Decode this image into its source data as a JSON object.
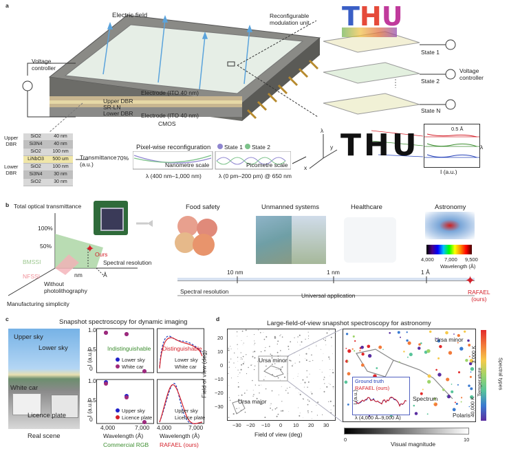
{
  "panel_a": {
    "label": "a",
    "electric_field": "Electric field",
    "voltage_controller": "Voltage\ncontroller",
    "reconfig_unit": "Reconfigurable\nmodulation unit",
    "electrode_top": "Electrode (ITO 40 nm)",
    "upper_dbr": "Upper DBR",
    "sr_ln": "SR-LN",
    "lower_dbr": "Lower DBR",
    "electrode_bottom": "Electrode (ITO 40 nm)",
    "cmos": "CMOS",
    "state1": "State 1",
    "state2": "State 2",
    "stateN": "State N",
    "voltage_controller_right": "Voltage\ncontroller",
    "thu_letters": [
      "T",
      "H",
      "U"
    ],
    "layer_stack": {
      "upper_label": "Upper\nDBR",
      "lower_label": "Lower\nDBR",
      "rows": [
        [
          "SiO2",
          "40 nm"
        ],
        [
          "Si3N4",
          "40 nm"
        ],
        [
          "SiO2",
          "100 nm"
        ],
        [
          "LiNbO3",
          "500 um"
        ],
        [
          "SiO2",
          "100 nm"
        ],
        [
          "Si3N4",
          "30 nm"
        ],
        [
          "SiO2",
          "30 nm"
        ]
      ]
    },
    "transmittance": "Transmittance\n(a.u.)",
    "pixel_reconfig": "Pixel-wise reconfiguration",
    "pct70": "70%",
    "nanometre_scale": "Nanometre scale",
    "picometre_scale": "Picometre scale",
    "legend_state1": "State 1",
    "legend_state2": "State 2",
    "x_nm": "λ (400 nm–1,000 nm)",
    "x_pm": "λ (0 pm–200 pm) @ 650 nm",
    "inset_scale": "0.5 Å",
    "inset_xlabel": "I (a.u.)",
    "inset_lambda": "λ",
    "axis_lambda": "λ",
    "axis_x": "x",
    "axis_y": "y"
  },
  "panel_b": {
    "label": "b",
    "y_axis": "Total optical transmittance",
    "tick100": "100%",
    "tick50": "50%",
    "bmssi": "BMSSI",
    "nfssi": "NFSSI",
    "ours": "Ours",
    "nm": "nm",
    "angstrom": "Å",
    "without": "Without\nphotolithography",
    "spectral_res_axis": "Spectral resolution",
    "manufacturing": "Manufacturing simplicity",
    "apps": [
      "Food safety",
      "Unmanned systems",
      "Healthcare",
      "Astronomy"
    ],
    "astro_wl_ticks": [
      "4,000",
      "7,000",
      "9,500"
    ],
    "astro_wl_label": "Wavelength (Å)",
    "scale_ticks": [
      "10 nm",
      "1 nm",
      "1 Å"
    ],
    "spectral_resolution": "Spectral resolution",
    "universal": "Universal application",
    "rafael": "RAFAEL\n(ours)"
  },
  "panel_c": {
    "label": "c",
    "title": "Snapshot spectroscopy for dynamic imaging",
    "upper_sky": "Upper sky",
    "lower_sky": "Lower sky",
    "white_car": "White car",
    "licence_plate": "Licence plate",
    "real_scene": "Real scene",
    "indistinguishable": "Indistinguishable",
    "distinguishable": "Distinguishable",
    "ylabel": "I (a.u.)",
    "xlabel": "Wavelength (Å)",
    "x_ticks": [
      "4,000",
      "7,000"
    ],
    "commercial_rgb": "Commercial RGB",
    "rafael_ours": "RAFAEL (ours)",
    "legend_top": [
      "Lower sky",
      "White car"
    ],
    "legend_bottom": [
      "Upper sky",
      "Licence plate"
    ],
    "y_ticks": [
      "1.0",
      "0.5",
      "0"
    ]
  },
  "panel_d": {
    "label": "d",
    "title": "Large-field-of-view snapshot spectroscopy for astronomy",
    "ylabel": "Field of view (deg)",
    "xlabel": "Field of view (deg)",
    "y_ticks": [
      "20",
      "10",
      "0",
      "−10",
      "−20",
      "−30"
    ],
    "x_ticks": [
      "−30",
      "−20",
      "−10",
      "0",
      "10",
      "20",
      "30"
    ],
    "ursa_minor_left": "Ursa minor",
    "ursa_major": "Ursa major",
    "ursa_minor_right": "Ursa minor",
    "polaris": "Polaris",
    "spectrum": "Spectrum",
    "ground_truth": "Ground truth",
    "rafael_ours": "RAFAEL (ours)",
    "inset_x": "λ (4,000 Å–9,000 Å)",
    "inset_y": "I (a.u.)",
    "temp_high": "3,000 K",
    "temp_low": "40,000 K",
    "temperature": "Temperature",
    "spectral_types": "Spectral types",
    "vm_0": "0",
    "vm_10": "10",
    "visual_magnitude": "Visual magnitude"
  }
}
